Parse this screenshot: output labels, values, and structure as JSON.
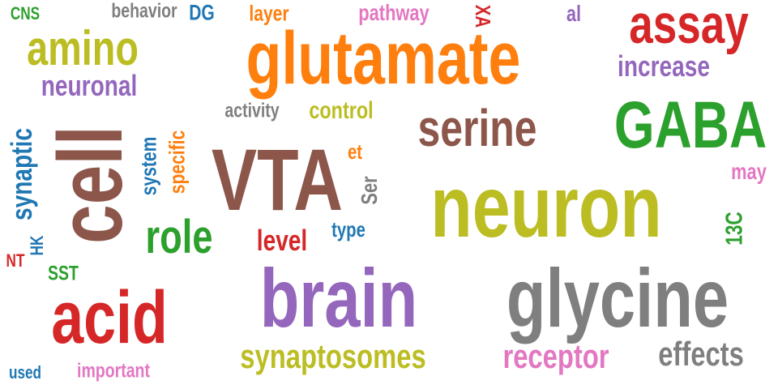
{
  "palette": {
    "red": "#d62728",
    "orange": "#ff7f0e",
    "olive": "#bcbd22",
    "purple": "#9467bd",
    "brown": "#8c564b",
    "green": "#2ca02c",
    "gray": "#7f7f7f",
    "pink": "#e377c2",
    "blue": "#1f77b4"
  },
  "words": [
    {
      "text": "glutamate",
      "color": "orange"
    },
    {
      "text": "VTA",
      "color": "brown"
    },
    {
      "text": "neuron",
      "color": "olive"
    },
    {
      "text": "brain",
      "color": "purple"
    },
    {
      "text": "glycine",
      "color": "gray"
    },
    {
      "text": "cell",
      "color": "brown"
    },
    {
      "text": "acid",
      "color": "red"
    },
    {
      "text": "GABA",
      "color": "green"
    },
    {
      "text": "serine",
      "color": "brown"
    },
    {
      "text": "assay",
      "color": "red"
    },
    {
      "text": "amino",
      "color": "olive"
    },
    {
      "text": "role",
      "color": "green"
    },
    {
      "text": "synaptosomes",
      "color": "olive"
    },
    {
      "text": "receptor",
      "color": "pink"
    },
    {
      "text": "effects",
      "color": "gray"
    },
    {
      "text": "increase",
      "color": "purple"
    },
    {
      "text": "neuronal",
      "color": "purple"
    },
    {
      "text": "synaptic",
      "color": "blue"
    },
    {
      "text": "level",
      "color": "red"
    },
    {
      "text": "control",
      "color": "olive"
    },
    {
      "text": "activity",
      "color": "gray"
    },
    {
      "text": "system",
      "color": "blue"
    },
    {
      "text": "specific",
      "color": "orange"
    },
    {
      "text": "pathway",
      "color": "pink"
    },
    {
      "text": "behavior",
      "color": "gray"
    },
    {
      "text": "layer",
      "color": "orange"
    },
    {
      "text": "DG",
      "color": "blue"
    },
    {
      "text": "CNS",
      "color": "green"
    },
    {
      "text": "XA",
      "color": "red"
    },
    {
      "text": "al",
      "color": "purple"
    },
    {
      "text": "may",
      "color": "pink"
    },
    {
      "text": "13C",
      "color": "green"
    },
    {
      "text": "type",
      "color": "blue"
    },
    {
      "text": "Ser",
      "color": "gray"
    },
    {
      "text": "et",
      "color": "orange"
    },
    {
      "text": "SST",
      "color": "green"
    },
    {
      "text": "HK",
      "color": "blue"
    },
    {
      "text": "NT",
      "color": "red"
    },
    {
      "text": "used",
      "color": "blue"
    },
    {
      "text": "important",
      "color": "pink"
    }
  ]
}
